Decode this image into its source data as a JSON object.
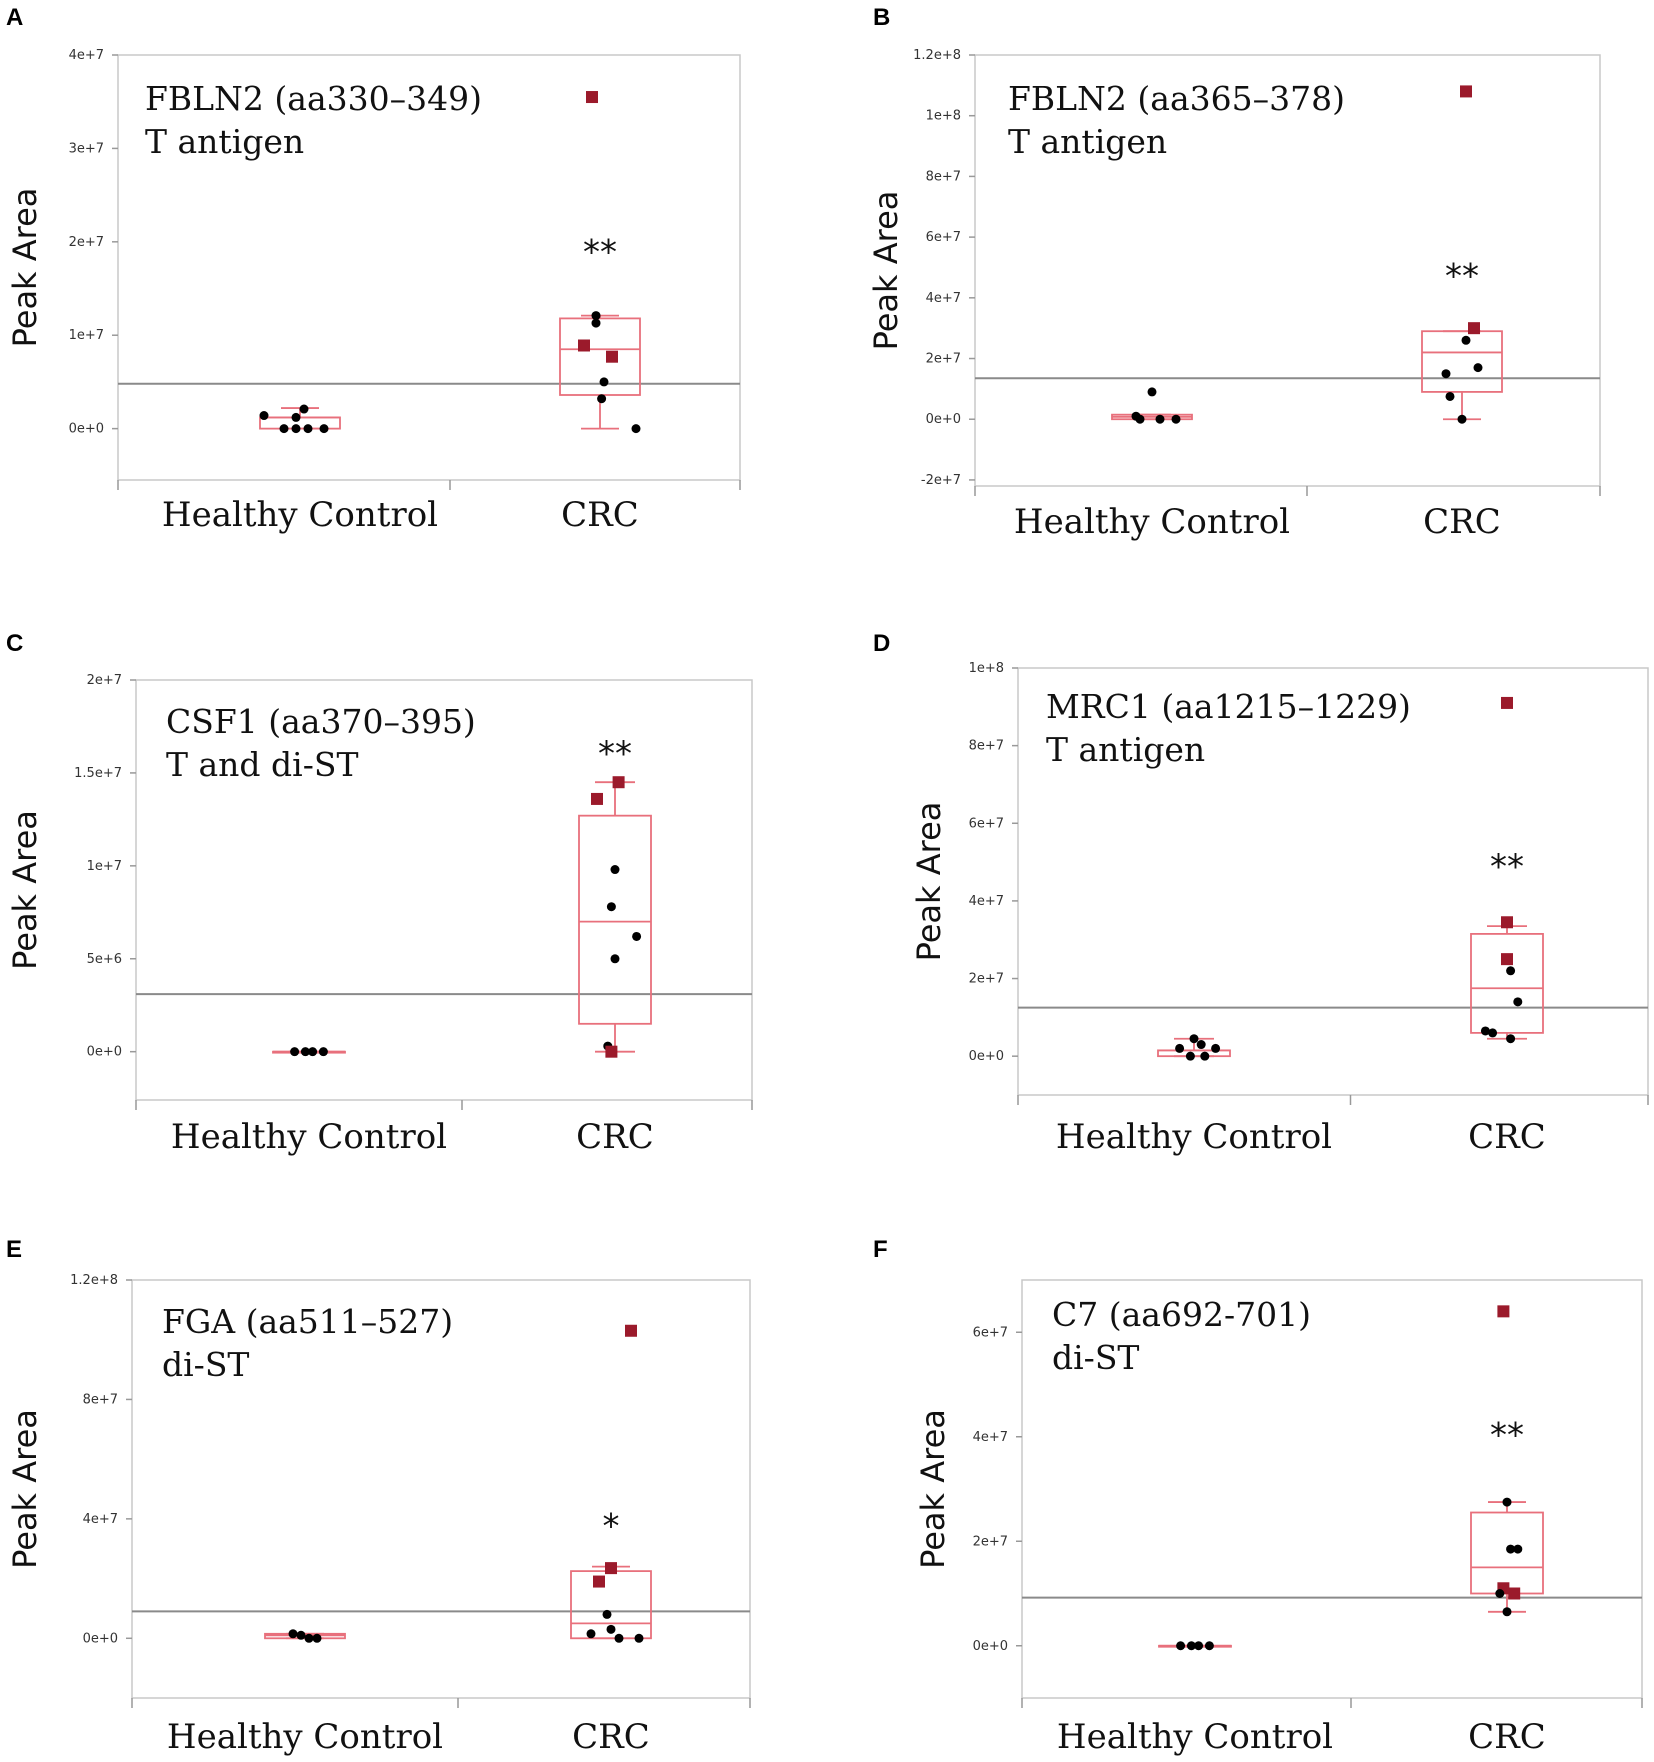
{
  "chart_data": [
    {
      "id": "A",
      "type": "box",
      "panel_label": "A",
      "title_line1": "FBLN2 (aa330–349)",
      "title_line2": "T antigen",
      "ylabel": "Peak Area",
      "categories": [
        "Healthy Control",
        "CRC"
      ],
      "ylim": [
        -5500000,
        40000000
      ],
      "yticks": [
        {
          "v": 0,
          "t": "0e+0"
        },
        {
          "v": 10000000,
          "t": "1e+7"
        },
        {
          "v": 20000000,
          "t": "2e+7"
        },
        {
          "v": 30000000,
          "t": "3e+7"
        },
        {
          "v": 40000000,
          "t": "4e+7"
        }
      ],
      "cutoff": 4800000,
      "significance": "**",
      "sig_value": 19800000,
      "boxes": [
        {
          "whislo": 0,
          "q1": 0,
          "med": 1200000,
          "q3": 1200000,
          "whishi": 2200000
        },
        {
          "whislo": 0,
          "q1": 3600000,
          "med": 8500000,
          "q3": 11800000,
          "whishi": 12100000
        }
      ],
      "points": [
        [
          {
            "j": -0.45,
            "v": 1400000,
            "s": "c"
          },
          {
            "j": -0.2,
            "v": 0,
            "s": "c"
          },
          {
            "j": -0.05,
            "v": 1200000,
            "s": "c"
          },
          {
            "j": 0.05,
            "v": 2100000,
            "s": "c"
          },
          {
            "j": 0.1,
            "v": 0,
            "s": "c"
          },
          {
            "j": 0.3,
            "v": 0,
            "s": "c"
          },
          {
            "j": -0.05,
            "v": 0,
            "s": "c"
          }
        ],
        [
          {
            "j": -0.1,
            "v": 35500000,
            "s": "q"
          },
          {
            "j": -0.05,
            "v": 12100000,
            "s": "c"
          },
          {
            "j": -0.05,
            "v": 11300000,
            "s": "c"
          },
          {
            "j": -0.2,
            "v": 8900000,
            "s": "q"
          },
          {
            "j": 0.15,
            "v": 7700000,
            "s": "q"
          },
          {
            "j": 0.05,
            "v": 5000000,
            "s": "c"
          },
          {
            "j": 0.02,
            "v": 3200000,
            "s": "c"
          },
          {
            "j": 0.45,
            "v": 0,
            "s": "c"
          }
        ]
      ]
    },
    {
      "id": "B",
      "type": "box",
      "panel_label": "B",
      "title_line1": "FBLN2 (aa365–378)",
      "title_line2": "T antigen",
      "ylabel": "Peak Area",
      "categories": [
        "Healthy Control",
        "CRC"
      ],
      "ylim": [
        -22000000,
        120000000
      ],
      "yticks": [
        {
          "v": -20000000,
          "t": "-2e+7"
        },
        {
          "v": 0,
          "t": "0e+0"
        },
        {
          "v": 20000000,
          "t": "2e+7"
        },
        {
          "v": 40000000,
          "t": "4e+7"
        },
        {
          "v": 60000000,
          "t": "6e+7"
        },
        {
          "v": 80000000,
          "t": "8e+7"
        },
        {
          "v": 100000000,
          "t": "1e+8"
        },
        {
          "v": 120000000,
          "t": "1.2e+8"
        }
      ],
      "cutoff": 13500000,
      "significance": "**",
      "sig_value": 50000000,
      "boxes": [
        {
          "whislo": 0,
          "q1": 0,
          "med": 800000,
          "q3": 1500000,
          "whishi": 1500000
        },
        {
          "whislo": 0,
          "q1": 9000000,
          "med": 22000000,
          "q3": 29000000,
          "whishi": 29000000
        }
      ],
      "points": [
        [
          {
            "j": -0.2,
            "v": 1000000,
            "s": "c"
          },
          {
            "j": 0,
            "v": 9000000,
            "s": "c"
          },
          {
            "j": 0.1,
            "v": 0,
            "s": "c"
          },
          {
            "j": -0.15,
            "v": 0,
            "s": "c"
          },
          {
            "j": 0.3,
            "v": 0,
            "s": "c"
          }
        ],
        [
          {
            "j": 0.05,
            "v": 108000000,
            "s": "q"
          },
          {
            "j": 0.15,
            "v": 30000000,
            "s": "q"
          },
          {
            "j": 0.05,
            "v": 26000000,
            "s": "c"
          },
          {
            "j": 0.2,
            "v": 17000000,
            "s": "c"
          },
          {
            "j": -0.2,
            "v": 15000000,
            "s": "c"
          },
          {
            "j": -0.15,
            "v": 7500000,
            "s": "c"
          },
          {
            "j": 0,
            "v": 0,
            "s": "c"
          }
        ]
      ]
    },
    {
      "id": "C",
      "type": "box",
      "panel_label": "C",
      "title_line1": "CSF1 (aa370–395)",
      "title_line2": "T and di-ST",
      "ylabel": "Peak Area",
      "categories": [
        "Healthy Control",
        "CRC"
      ],
      "ylim": [
        -2600000,
        20000000
      ],
      "yticks": [
        {
          "v": 0,
          "t": "0e+0"
        },
        {
          "v": 5000000,
          "t": "5e+6"
        },
        {
          "v": 10000000,
          "t": "1e+7"
        },
        {
          "v": 15000000,
          "t": "1.5e+7"
        },
        {
          "v": 20000000,
          "t": "2e+7"
        }
      ],
      "cutoff": 3100000,
      "significance": "**",
      "sig_value": 16500000,
      "boxes": [
        {
          "whislo": 0,
          "q1": 0,
          "med": 0,
          "q3": 0,
          "whishi": 0
        },
        {
          "whislo": 0,
          "q1": 1500000,
          "med": 7000000,
          "q3": 12700000,
          "whishi": 14500000
        }
      ],
      "points": [
        [
          {
            "j": -0.2,
            "v": 0,
            "s": "c"
          },
          {
            "j": -0.05,
            "v": 0,
            "s": "c"
          },
          {
            "j": 0.05,
            "v": 0,
            "s": "c"
          },
          {
            "j": 0.2,
            "v": 0,
            "s": "c"
          }
        ],
        [
          {
            "j": 0.05,
            "v": 14500000,
            "s": "q"
          },
          {
            "j": -0.25,
            "v": 13600000,
            "s": "q"
          },
          {
            "j": 0,
            "v": 9800000,
            "s": "c"
          },
          {
            "j": -0.05,
            "v": 7800000,
            "s": "c"
          },
          {
            "j": 0.3,
            "v": 6200000,
            "s": "c"
          },
          {
            "j": 0,
            "v": 5000000,
            "s": "c"
          },
          {
            "j": -0.1,
            "v": 300000,
            "s": "c"
          },
          {
            "j": -0.05,
            "v": 0,
            "s": "q"
          }
        ]
      ]
    },
    {
      "id": "D",
      "type": "box",
      "panel_label": "D",
      "title_line1": "MRC1 (aa1215–1229)",
      "title_line2": "T antigen",
      "ylabel": "Peak Area",
      "categories": [
        "Healthy Control",
        "CRC"
      ],
      "ylim": [
        -10000000,
        100000000
      ],
      "yticks": [
        {
          "v": 0,
          "t": "0e+0"
        },
        {
          "v": 20000000,
          "t": "2e+7"
        },
        {
          "v": 40000000,
          "t": "4e+7"
        },
        {
          "v": 60000000,
          "t": "6e+7"
        },
        {
          "v": 80000000,
          "t": "8e+7"
        },
        {
          "v": 100000000,
          "t": "1e+8"
        }
      ],
      "cutoff": 12500000,
      "significance": "**",
      "sig_value": 51000000,
      "boxes": [
        {
          "whislo": 0,
          "q1": 0,
          "med": 1500000,
          "q3": 1500000,
          "whishi": 4500000
        },
        {
          "whislo": 4500000,
          "q1": 6000000,
          "med": 17500000,
          "q3": 31500000,
          "whishi": 33500000
        }
      ],
      "points": [
        [
          {
            "j": -0.2,
            "v": 2000000,
            "s": "c"
          },
          {
            "j": 0,
            "v": 4500000,
            "s": "c"
          },
          {
            "j": 0.1,
            "v": 3000000,
            "s": "c"
          },
          {
            "j": -0.05,
            "v": 0,
            "s": "c"
          },
          {
            "j": 0.3,
            "v": 2000000,
            "s": "c"
          },
          {
            "j": 0.15,
            "v": 0,
            "s": "c"
          }
        ],
        [
          {
            "j": 0,
            "v": 91000000,
            "s": "q"
          },
          {
            "j": 0,
            "v": 34500000,
            "s": "q"
          },
          {
            "j": 0,
            "v": 25000000,
            "s": "q"
          },
          {
            "j": 0.05,
            "v": 22000000,
            "s": "c"
          },
          {
            "j": 0.15,
            "v": 14000000,
            "s": "c"
          },
          {
            "j": -0.3,
            "v": 6500000,
            "s": "c"
          },
          {
            "j": -0.2,
            "v": 6000000,
            "s": "c"
          },
          {
            "j": 0.05,
            "v": 4500000,
            "s": "c"
          }
        ]
      ]
    },
    {
      "id": "E",
      "type": "box",
      "panel_label": "E",
      "title_line1": "FGA (aa511–527)",
      "title_line2": "di-ST",
      "ylabel": "Peak Area",
      "categories": [
        "Healthy Control",
        "CRC"
      ],
      "ylim": [
        -20000000,
        120000000
      ],
      "yticks": [
        {
          "v": 0,
          "t": "0e+0"
        },
        {
          "v": 40000000,
          "t": "4e+7"
        },
        {
          "v": 80000000,
          "t": "8e+7"
        },
        {
          "v": 120000000,
          "t": "1.2e+8"
        }
      ],
      "cutoff": 9000000,
      "significance": "*",
      "sig_value": 40500000,
      "boxes": [
        {
          "whislo": 0,
          "q1": 0,
          "med": 1000000,
          "q3": 1500000,
          "whishi": 1500000
        },
        {
          "whislo": 0,
          "q1": 0,
          "med": 5000000,
          "q3": 22500000,
          "whishi": 24000000
        }
      ],
      "points": [
        [
          {
            "j": -0.15,
            "v": 1500000,
            "s": "c"
          },
          {
            "j": -0.05,
            "v": 1000000,
            "s": "c"
          },
          {
            "j": 0.05,
            "v": 0,
            "s": "c"
          },
          {
            "j": 0.15,
            "v": 0,
            "s": "c"
          }
        ],
        [
          {
            "j": 0.25,
            "v": 103000000,
            "s": "q"
          },
          {
            "j": 0,
            "v": 23500000,
            "s": "q"
          },
          {
            "j": -0.15,
            "v": 19000000,
            "s": "q"
          },
          {
            "j": -0.05,
            "v": 8000000,
            "s": "c"
          },
          {
            "j": 0,
            "v": 3000000,
            "s": "c"
          },
          {
            "j": -0.25,
            "v": 1500000,
            "s": "c"
          },
          {
            "j": 0.1,
            "v": 0,
            "s": "c"
          },
          {
            "j": 0.35,
            "v": 0,
            "s": "c"
          }
        ]
      ]
    },
    {
      "id": "F",
      "type": "box",
      "panel_label": "F",
      "title_line1": "C7 (aa692-701)",
      "title_line2": "di-ST",
      "ylabel": "Peak Area",
      "categories": [
        "Healthy Control",
        "CRC"
      ],
      "ylim": [
        -10000000,
        70000000
      ],
      "yticks": [
        {
          "v": 0,
          "t": "0e+0"
        },
        {
          "v": 20000000,
          "t": "2e+7"
        },
        {
          "v": 40000000,
          "t": "4e+7"
        },
        {
          "v": 60000000,
          "t": "6e+7"
        }
      ],
      "cutoff": 9200000,
      "significance": "**",
      "sig_value": 42000000,
      "boxes": [
        {
          "whislo": 0,
          "q1": 0,
          "med": 0,
          "q3": 0,
          "whishi": 0
        },
        {
          "whislo": 6500000,
          "q1": 10000000,
          "med": 15000000,
          "q3": 25500000,
          "whishi": 27500000
        }
      ],
      "points": [
        [
          {
            "j": -0.2,
            "v": 0,
            "s": "c"
          },
          {
            "j": -0.05,
            "v": 0,
            "s": "c"
          },
          {
            "j": 0.05,
            "v": 0,
            "s": "c"
          },
          {
            "j": 0.2,
            "v": 0,
            "s": "c"
          }
        ],
        [
          {
            "j": -0.05,
            "v": 64000000,
            "s": "q"
          },
          {
            "j": 0,
            "v": 27500000,
            "s": "c"
          },
          {
            "j": 0.05,
            "v": 18500000,
            "s": "c"
          },
          {
            "j": 0.15,
            "v": 18500000,
            "s": "c"
          },
          {
            "j": -0.05,
            "v": 11000000,
            "s": "q"
          },
          {
            "j": 0.1,
            "v": 10000000,
            "s": "q"
          },
          {
            "j": -0.1,
            "v": 10000000,
            "s": "c"
          },
          {
            "j": 0,
            "v": 6500000,
            "s": "c"
          }
        ]
      ]
    }
  ],
  "colors": {
    "box": "#e8707c",
    "square_marker": "#9b1a2b",
    "dot_marker": "#000000",
    "frame": "#c8c8c8",
    "cutoff_line": "#8a8a8a"
  }
}
